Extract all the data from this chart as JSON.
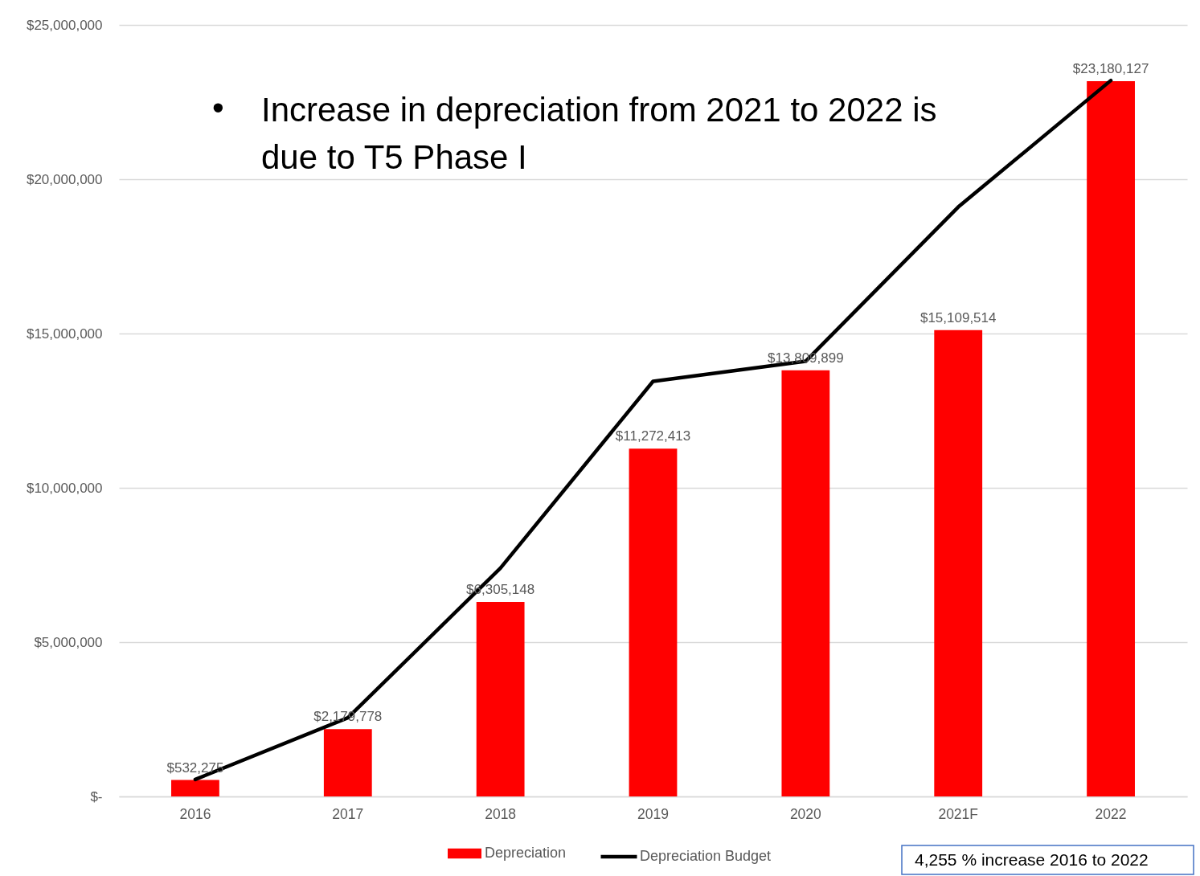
{
  "chart_data": {
    "type": "bar",
    "categories": [
      "2016",
      "2017",
      "2018",
      "2019",
      "2020",
      "2021F",
      "2022"
    ],
    "series": [
      {
        "name": "Depreciation",
        "color": "#ff0000",
        "values": [
          532275,
          2179778,
          6305148,
          11272413,
          13809899,
          15109514,
          23180127
        ],
        "value_labels": [
          "$532,275",
          "$2,179,778",
          "$6,305,148",
          "$11,272,413",
          "$13,809,899",
          "$15,109,514",
          "$23,180,127"
        ]
      },
      {
        "name": "Depreciation Budget",
        "type": "line",
        "color": "#000000",
        "values": [
          550000,
          2550000,
          7400000,
          13450000,
          14100000,
          19100000,
          23200000
        ]
      }
    ],
    "ylim": [
      0,
      25000000
    ],
    "yticks": [
      {
        "value": 0,
        "label": "$-"
      },
      {
        "value": 5000000,
        "label": "$5,000,000"
      },
      {
        "value": 10000000,
        "label": "$10,000,000"
      },
      {
        "value": 15000000,
        "label": "$15,000,000"
      },
      {
        "value": 20000000,
        "label": "$20,000,000"
      },
      {
        "value": 25000000,
        "label": "$25,000,000"
      }
    ],
    "grid": "y",
    "legend": "bottom",
    "marker": "none",
    "line_style": "solid",
    "annotations": [
      "• Increase in depreciation from 2021 to 2022 is due to T5 Phase I",
      "4,255 % increase 2016 to 2022"
    ]
  }
}
